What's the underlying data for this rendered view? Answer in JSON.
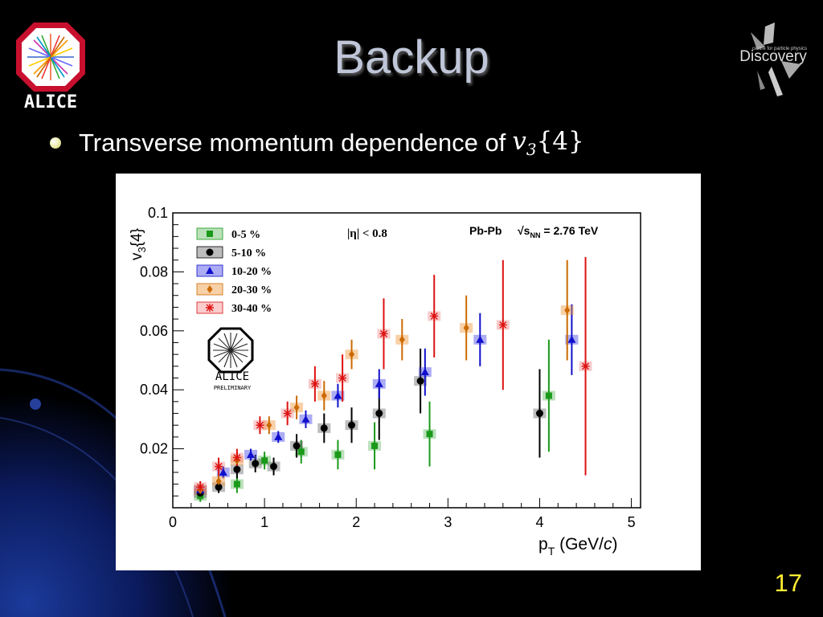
{
  "slide": {
    "title": "Backup",
    "bullet_text": "Transverse momentum dependence of",
    "bullet_math_var": "v",
    "bullet_math_sub": "3",
    "bullet_math_arg": "{4}",
    "slide_number": "17"
  },
  "logos": {
    "alice_logo_text": "ALICE",
    "discovery_logo_text": "Discovery",
    "discovery_logo_subtext": "centre for particle physics"
  },
  "chart_data": {
    "type": "scatter",
    "title": "",
    "xlabel": "p_T (GeV/c)",
    "ylabel": "v_3{4}",
    "xlim": [
      0,
      5.1
    ],
    "ylim": [
      0,
      0.1
    ],
    "x_ticks": [
      "0",
      "1",
      "2",
      "3",
      "4",
      "5"
    ],
    "y_ticks": [
      "0.02",
      "0.04",
      "0.06",
      "0.08",
      "0.1"
    ],
    "annotations": {
      "eta_cut": "|η| < 0.8",
      "system": "Pb-Pb",
      "energy": "√s_NN = 2.76 TeV",
      "alice_label": "ALICE",
      "preliminary": "PRELIMINARY"
    },
    "legend": {
      "placement": "top-left",
      "entries": [
        "0-5 %",
        "5-10 %",
        "10-20 %",
        "20-30 %",
        "30-40 %"
      ]
    },
    "series": [
      {
        "name": "0-5 %",
        "color": "#1a9a1a",
        "marker": "square",
        "points": [
          {
            "x": 0.3,
            "y": 0.004,
            "err": 0.002
          },
          {
            "x": 0.7,
            "y": 0.008,
            "err": 0.003
          },
          {
            "x": 1.0,
            "y": 0.016,
            "err": 0.003
          },
          {
            "x": 1.4,
            "y": 0.019,
            "err": 0.004
          },
          {
            "x": 1.8,
            "y": 0.018,
            "err": 0.005
          },
          {
            "x": 2.2,
            "y": 0.021,
            "err": 0.008
          },
          {
            "x": 2.8,
            "y": 0.025,
            "err": 0.011
          },
          {
            "x": 4.1,
            "y": 0.038,
            "err": 0.019
          }
        ]
      },
      {
        "name": "5-10 %",
        "color": "#000000",
        "marker": "circle",
        "points": [
          {
            "x": 0.3,
            "y": 0.005,
            "err": 0.002
          },
          {
            "x": 0.5,
            "y": 0.007,
            "err": 0.002
          },
          {
            "x": 0.7,
            "y": 0.013,
            "err": 0.003
          },
          {
            "x": 0.9,
            "y": 0.015,
            "err": 0.003
          },
          {
            "x": 1.1,
            "y": 0.014,
            "err": 0.003
          },
          {
            "x": 1.35,
            "y": 0.021,
            "err": 0.004
          },
          {
            "x": 1.65,
            "y": 0.027,
            "err": 0.005
          },
          {
            "x": 1.95,
            "y": 0.028,
            "err": 0.006
          },
          {
            "x": 2.25,
            "y": 0.032,
            "err": 0.009
          },
          {
            "x": 2.7,
            "y": 0.043,
            "err": 0.011
          },
          {
            "x": 4.0,
            "y": 0.032,
            "err": 0.015
          }
        ]
      },
      {
        "name": "10-20 %",
        "color": "#1010cc",
        "marker": "triangle",
        "points": [
          {
            "x": 0.3,
            "y": 0.006,
            "err": 0.002
          },
          {
            "x": 0.55,
            "y": 0.012,
            "err": 0.002
          },
          {
            "x": 0.85,
            "y": 0.018,
            "err": 0.002
          },
          {
            "x": 1.15,
            "y": 0.024,
            "err": 0.002
          },
          {
            "x": 1.45,
            "y": 0.03,
            "err": 0.003
          },
          {
            "x": 1.8,
            "y": 0.038,
            "err": 0.004
          },
          {
            "x": 2.25,
            "y": 0.042,
            "err": 0.005
          },
          {
            "x": 2.75,
            "y": 0.046,
            "err": 0.008
          },
          {
            "x": 3.35,
            "y": 0.057,
            "err": 0.009
          },
          {
            "x": 4.35,
            "y": 0.057,
            "err": 0.012
          }
        ]
      },
      {
        "name": "20-30 %",
        "color": "#cc6a00",
        "marker": "diamond",
        "points": [
          {
            "x": 0.3,
            "y": 0.006,
            "err": 0.002
          },
          {
            "x": 0.5,
            "y": 0.009,
            "err": 0.003
          },
          {
            "x": 0.7,
            "y": 0.016,
            "err": 0.003
          },
          {
            "x": 1.05,
            "y": 0.028,
            "err": 0.003
          },
          {
            "x": 1.35,
            "y": 0.034,
            "err": 0.004
          },
          {
            "x": 1.65,
            "y": 0.038,
            "err": 0.005
          },
          {
            "x": 1.95,
            "y": 0.052,
            "err": 0.005
          },
          {
            "x": 2.5,
            "y": 0.057,
            "err": 0.007
          },
          {
            "x": 3.2,
            "y": 0.061,
            "err": 0.011
          },
          {
            "x": 4.3,
            "y": 0.067,
            "err": 0.017
          }
        ]
      },
      {
        "name": "30-40 %",
        "color": "#dd1111",
        "marker": "star",
        "points": [
          {
            "x": 0.3,
            "y": 0.007,
            "err": 0.002
          },
          {
            "x": 0.5,
            "y": 0.014,
            "err": 0.003
          },
          {
            "x": 0.7,
            "y": 0.017,
            "err": 0.003
          },
          {
            "x": 0.95,
            "y": 0.028,
            "err": 0.003
          },
          {
            "x": 1.25,
            "y": 0.032,
            "err": 0.004
          },
          {
            "x": 1.55,
            "y": 0.042,
            "err": 0.006
          },
          {
            "x": 1.85,
            "y": 0.044,
            "err": 0.008
          },
          {
            "x": 2.3,
            "y": 0.059,
            "err": 0.012
          },
          {
            "x": 2.85,
            "y": 0.065,
            "err": 0.014
          },
          {
            "x": 3.6,
            "y": 0.062,
            "err": 0.022
          },
          {
            "x": 4.5,
            "y": 0.048,
            "err": 0.037
          }
        ]
      }
    ]
  }
}
